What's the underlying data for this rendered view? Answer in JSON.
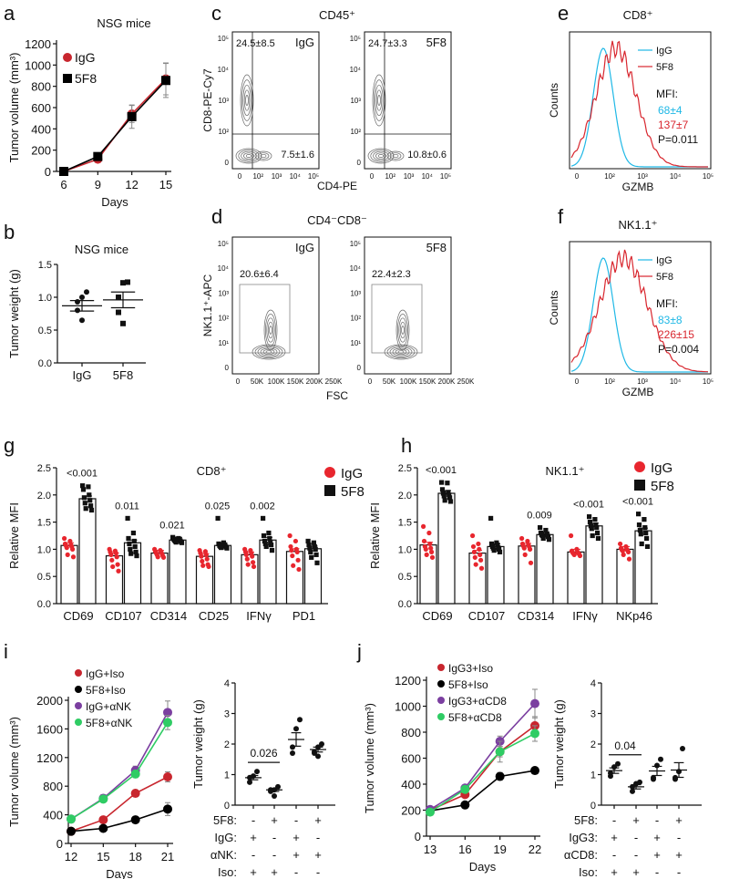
{
  "panel_labels": [
    "a",
    "b",
    "c",
    "d",
    "e",
    "f",
    "g",
    "h",
    "i",
    "j"
  ],
  "colors": {
    "igg": "#c8262e",
    "f58": "#000000",
    "purple": "#7b3fa0",
    "green": "#2fcc64",
    "cyan": "#1fb8e6",
    "hist_red": "#d8262e",
    "red_dot": "#e8262e",
    "gray": "#777777"
  },
  "chart_data": [
    {
      "id": "a",
      "type": "line",
      "title": "NSG mice",
      "xlabel": "Days",
      "ylabel": "Tumor volume (mm³)",
      "x": [
        6,
        9,
        12,
        15
      ],
      "ylim": [
        0,
        1200
      ],
      "yticks": [
        0,
        200,
        400,
        600,
        800,
        1000,
        1200
      ],
      "series": [
        {
          "name": "IgG",
          "marker": "circle",
          "color": "#c8262e",
          "values": [
            0,
            115,
            540,
            870
          ],
          "err": [
            0,
            15,
            80,
            150
          ]
        },
        {
          "name": "5F8",
          "marker": "square",
          "color": "#000000",
          "values": [
            0,
            140,
            515,
            855
          ],
          "err": [
            0,
            10,
            110,
            160
          ]
        }
      ]
    },
    {
      "id": "b",
      "type": "scatter",
      "title": "NSG mice",
      "ylabel": "Tumor weight (g)",
      "categories": [
        "IgG",
        "5F8"
      ],
      "ylim": [
        0,
        1.5
      ],
      "yticks": [
        "0.0",
        "0.5",
        "1.0",
        "1.5"
      ],
      "groups": [
        {
          "points": [
            1.08,
            1.0,
            0.93,
            0.8,
            0.65
          ],
          "mean": 0.87,
          "sem": 0.08,
          "marker": "circle"
        },
        {
          "points": [
            1.23,
            1.22,
            1.0,
            0.77,
            0.6
          ],
          "mean": 0.96,
          "sem": 0.12,
          "marker": "square"
        }
      ]
    },
    {
      "id": "c",
      "type": "flow",
      "title": "CD45⁺",
      "xlabel": "CD4-PE",
      "ylabel": "CD8-PE-Cy7",
      "ticks": [
        "0",
        "10²",
        "10³",
        "10⁴",
        "10⁵"
      ],
      "plots": [
        {
          "name": "IgG",
          "top_left": "24.5±8.5",
          "bottom_right": "7.5±1.6"
        },
        {
          "name": "5F8",
          "top_left": "24.7±3.3",
          "bottom_right": "10.8±0.6"
        }
      ]
    },
    {
      "id": "d",
      "type": "flow",
      "title": "CD4⁻CD8⁻",
      "xlabel": "FSC",
      "ylabel": "NK1.1⁺-APC",
      "yticks": [
        "0",
        "10¹",
        "10²",
        "10³",
        "10⁴",
        "10⁵"
      ],
      "xticks": [
        "0",
        "50K",
        "100K",
        "150K",
        "200K",
        "250K"
      ],
      "plots": [
        {
          "name": "IgG",
          "gate": "20.6±6.4"
        },
        {
          "name": "5F8",
          "gate": "22.4±2.3"
        }
      ]
    },
    {
      "id": "e",
      "type": "histogram",
      "title": "CD8⁺",
      "xlabel": "GZMB",
      "ylabel": "Counts",
      "xticks": [
        "0",
        "10²",
        "10³",
        "10⁴",
        "10⁵"
      ],
      "legend": [
        "IgG",
        "5F8"
      ],
      "mfi_label": "MFI:",
      "mfi": [
        "68±4",
        "137±7"
      ],
      "p": "P=0.011"
    },
    {
      "id": "f",
      "type": "histogram",
      "title": "NK1.1⁺",
      "xlabel": "GZMB",
      "ylabel": "Counts",
      "xticks": [
        "0",
        "10²",
        "10³",
        "10⁴",
        "10⁵"
      ],
      "legend": [
        "IgG",
        "5F8"
      ],
      "mfi_label": "MFI:",
      "mfi": [
        "83±8",
        "226±15"
      ],
      "p": "P=0.004"
    },
    {
      "id": "g",
      "type": "bar",
      "title": "CD8⁺",
      "ylabel": "Relative MFI",
      "ylim": [
        0,
        2.5
      ],
      "yticks": [
        "0.0",
        "0.5",
        "1.0",
        "1.5",
        "2.0",
        "2.5"
      ],
      "categories": [
        "CD69",
        "CD107",
        "CD314",
        "CD25",
        "IFNγ",
        "PD1"
      ],
      "legend": [
        "IgG",
        "5F8"
      ],
      "pvalues": [
        "<0.001",
        "0.011",
        "0.021",
        "0.025",
        "0.002",
        ""
      ],
      "series": [
        {
          "name": "IgG",
          "values": [
            1.07,
            0.88,
            0.93,
            0.87,
            0.9,
            0.96
          ],
          "points": [
            [
              1.2,
              1.15,
              1.1,
              1.08,
              1.07,
              1.05,
              1.03,
              1.0,
              0.9,
              0.86
            ],
            [
              1.0,
              0.97,
              0.95,
              0.93,
              0.9,
              0.86,
              0.8,
              0.72,
              0.68,
              0.6
            ],
            [
              1.0,
              0.98,
              0.96,
              0.95,
              0.93,
              0.92,
              0.9,
              0.88,
              0.86,
              0.85
            ],
            [
              0.98,
              0.96,
              0.93,
              0.9,
              0.87,
              0.82,
              0.78,
              0.72,
              0.7,
              0.68
            ],
            [
              1.0,
              0.98,
              0.95,
              0.93,
              0.9,
              0.87,
              0.82,
              0.76,
              0.72,
              0.68
            ],
            [
              1.25,
              1.15,
              1.05,
              1.0,
              0.98,
              0.95,
              0.88,
              0.8,
              0.7,
              0.63
            ]
          ]
        },
        {
          "name": "5F8",
          "values": [
            1.93,
            1.12,
            1.17,
            1.07,
            1.17,
            1.01
          ],
          "points": [
            [
              2.17,
              2.15,
              2.1,
              2.0,
              1.95,
              1.9,
              1.85,
              1.8,
              1.75,
              1.72
            ],
            [
              1.57,
              1.3,
              1.2,
              1.15,
              1.1,
              1.05,
              1.0,
              0.95,
              0.92,
              0.88
            ],
            [
              1.22,
              1.2,
              1.19,
              1.18,
              1.17,
              1.16,
              1.15,
              1.14,
              1.13,
              1.12
            ],
            [
              1.57,
              1.12,
              1.1,
              1.08,
              1.07,
              1.06,
              1.05,
              1.04,
              1.03,
              1.02
            ],
            [
              1.57,
              1.3,
              1.25,
              1.2,
              1.15,
              1.12,
              1.1,
              1.08,
              1.05,
              0.98
            ],
            [
              1.15,
              1.12,
              1.08,
              1.05,
              1.02,
              1.0,
              0.95,
              0.9,
              0.85,
              0.75
            ]
          ]
        }
      ]
    },
    {
      "id": "h",
      "type": "bar",
      "title": "NK1.1⁺",
      "ylabel": "Relative MFI",
      "ylim": [
        0,
        2.5
      ],
      "yticks": [
        "0.0",
        "0.5",
        "1.0",
        "1.5",
        "2.0",
        "2.5"
      ],
      "categories": [
        "CD69",
        "CD107",
        "CD314",
        "IFNγ",
        "NKp46"
      ],
      "legend": [
        "IgG",
        "5F8"
      ],
      "pvalues": [
        "<0.001",
        "",
        "0.009",
        "<0.001",
        "<0.001"
      ],
      "series": [
        {
          "name": "IgG",
          "values": [
            1.08,
            0.93,
            1.06,
            0.95,
            1.0
          ],
          "points": [
            [
              1.42,
              1.3,
              1.15,
              1.1,
              1.05,
              1.02,
              1.0,
              0.95,
              0.9,
              0.85
            ],
            [
              1.25,
              1.1,
              1.05,
              1.0,
              0.95,
              0.9,
              0.85,
              0.8,
              0.72,
              0.65
            ],
            [
              1.2,
              1.15,
              1.1,
              1.08,
              1.06,
              1.05,
              1.02,
              1.0,
              0.9,
              0.75
            ],
            [
              1.25,
              1.0,
              0.97,
              0.95,
              0.94,
              0.93,
              0.92,
              0.91,
              0.9,
              0.88
            ],
            [
              1.1,
              1.05,
              1.02,
              1.0,
              0.99,
              0.98,
              0.97,
              0.95,
              0.9,
              0.82
            ]
          ]
        },
        {
          "name": "5F8",
          "values": [
            2.03,
            1.05,
            1.27,
            1.43,
            1.34
          ],
          "points": [
            [
              2.23,
              2.22,
              2.1,
              2.05,
              2.03,
              2.0,
              1.98,
              1.95,
              1.9,
              1.88
            ],
            [
              1.57,
              1.12,
              1.1,
              1.08,
              1.05,
              1.03,
              1.02,
              1.0,
              0.98,
              0.95
            ],
            [
              1.4,
              1.35,
              1.3,
              1.28,
              1.27,
              1.26,
              1.25,
              1.23,
              1.2,
              1.18
            ],
            [
              1.6,
              1.55,
              1.5,
              1.45,
              1.43,
              1.4,
              1.38,
              1.3,
              1.25,
              1.2
            ],
            [
              1.65,
              1.55,
              1.45,
              1.4,
              1.35,
              1.3,
              1.28,
              1.2,
              1.1,
              1.05
            ]
          ]
        }
      ]
    },
    {
      "id": "i_line",
      "type": "line",
      "xlabel": "Days",
      "ylabel": "Tumor volume (mm³)",
      "x": [
        12,
        15,
        18,
        21
      ],
      "ylim": [
        0,
        2000
      ],
      "yticks": [
        0,
        400,
        800,
        1200,
        1600,
        2000
      ],
      "series": [
        {
          "name": "IgG+Iso",
          "color": "#c8262e",
          "values": [
            170,
            330,
            700,
            930
          ],
          "err": [
            20,
            30,
            40,
            70
          ]
        },
        {
          "name": "5F8+Iso",
          "color": "#000000",
          "values": [
            170,
            210,
            330,
            480
          ],
          "err": [
            20,
            20,
            30,
            90
          ]
        },
        {
          "name": "IgG+αNK",
          "color": "#7b3fa0",
          "values": [
            340,
            630,
            1020,
            1830
          ],
          "err": [
            40,
            50,
            60,
            160
          ]
        },
        {
          "name": "5F8+αNK",
          "color": "#2fcc64",
          "values": [
            340,
            620,
            970,
            1690
          ],
          "err": [
            40,
            40,
            50,
            100
          ]
        }
      ]
    },
    {
      "id": "i_scatter",
      "type": "scatter",
      "ylabel": "Tumor weight (g)",
      "ylim": [
        0,
        4
      ],
      "yticks": [
        "0",
        "1",
        "2",
        "3",
        "4"
      ],
      "pvalue": "0.026",
      "pvalue_pair": [
        0,
        1
      ],
      "groups": [
        {
          "points": [
            1.1,
            0.95,
            0.9,
            0.75
          ],
          "mean": 0.9,
          "sem": 0.07
        },
        {
          "points": [
            0.6,
            0.5,
            0.5,
            0.45,
            0.3
          ],
          "mean": 0.5,
          "sem": 0.05
        },
        {
          "points": [
            2.8,
            2.5,
            1.9,
            1.7
          ],
          "mean": 2.15,
          "sem": 0.22
        },
        {
          "points": [
            2.0,
            1.9,
            1.75,
            1.7,
            1.6
          ],
          "mean": 1.82,
          "sem": 0.08
        }
      ],
      "table": [
        {
          "label": "5F8:",
          "values": [
            "-",
            "+",
            "-",
            "+"
          ]
        },
        {
          "label": "IgG:",
          "values": [
            "+",
            "-",
            "+",
            "-"
          ]
        },
        {
          "label": "αNK:",
          "values": [
            "-",
            "-",
            "+",
            "+"
          ]
        },
        {
          "label": "Iso:",
          "values": [
            "+",
            "+",
            "-",
            "-"
          ]
        }
      ]
    },
    {
      "id": "j_line",
      "type": "line",
      "xlabel": "Days",
      "ylabel": "Tumor volume (mm³)",
      "x": [
        13,
        16,
        19,
        22
      ],
      "ylim": [
        0,
        1200
      ],
      "yticks": [
        0,
        200,
        400,
        600,
        800,
        1000,
        1200
      ],
      "series": [
        {
          "name": "IgG3+Iso",
          "color": "#c8262e",
          "values": [
            200,
            320,
            650,
            850
          ],
          "err": [
            15,
            20,
            40,
            70
          ]
        },
        {
          "name": "5F8+Iso",
          "color": "#000000",
          "values": [
            195,
            240,
            460,
            505
          ],
          "err": [
            10,
            15,
            30,
            20
          ]
        },
        {
          "name": "IgG3+αCD8",
          "color": "#7b3fa0",
          "values": [
            205,
            370,
            730,
            1020
          ],
          "err": [
            15,
            25,
            40,
            110
          ]
        },
        {
          "name": "5F8+αCD8",
          "color": "#2fcc64",
          "values": [
            185,
            360,
            650,
            790
          ],
          "err": [
            15,
            25,
            80,
            60
          ]
        }
      ]
    },
    {
      "id": "j_scatter",
      "type": "scatter",
      "ylabel": "Tumor weight (g)",
      "ylim": [
        0,
        4
      ],
      "yticks": [
        "0",
        "1",
        "2",
        "3",
        "4"
      ],
      "pvalue": "0.04",
      "pvalue_pair": [
        0,
        1
      ],
      "groups": [
        {
          "points": [
            1.35,
            1.25,
            1.05,
            0.95
          ],
          "mean": 1.13,
          "sem": 0.09
        },
        {
          "points": [
            0.75,
            0.7,
            0.6,
            0.45
          ],
          "mean": 0.6,
          "sem": 0.07
        },
        {
          "points": [
            1.5,
            1.3,
            0.9,
            0.85
          ],
          "mean": 1.12,
          "sem": 0.15
        },
        {
          "points": [
            1.85,
            1.1,
            0.9,
            0.85
          ],
          "mean": 1.15,
          "sem": 0.24
        }
      ],
      "table": [
        {
          "label": "5F8:",
          "values": [
            "-",
            "+",
            "-",
            "+"
          ]
        },
        {
          "label": "IgG3:",
          "values": [
            "+",
            "-",
            "+",
            "-"
          ]
        },
        {
          "label": "αCD8:",
          "values": [
            "-",
            "-",
            "+",
            "+"
          ]
        },
        {
          "label": "Iso:",
          "values": [
            "+",
            "+",
            "-",
            "-"
          ]
        }
      ]
    }
  ]
}
